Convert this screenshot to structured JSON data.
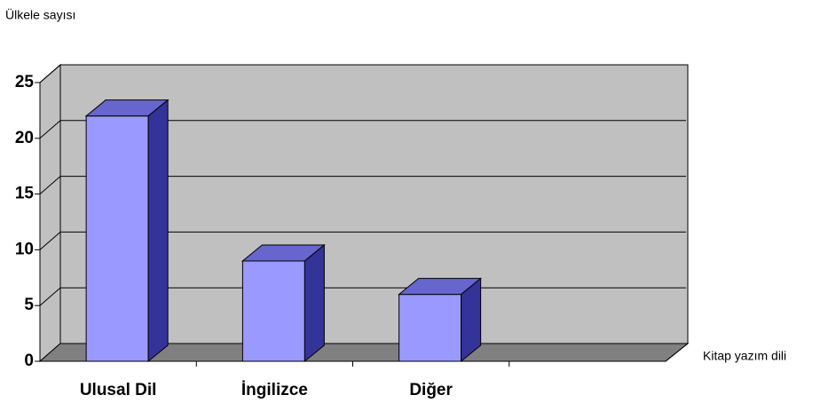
{
  "chart_data": {
    "type": "bar3d",
    "y_label": "Ülkele sayısı",
    "x_label": "Kitap yazım dili",
    "categories": [
      "Ulusal Dil",
      "İngilizce",
      "Diğer",
      null
    ],
    "values": [
      22,
      9,
      6,
      null
    ],
    "color": "#9999ff",
    "ylim": [
      0,
      25
    ],
    "yticks": [
      0,
      5,
      10,
      15,
      20,
      25
    ],
    "grid": true
  }
}
